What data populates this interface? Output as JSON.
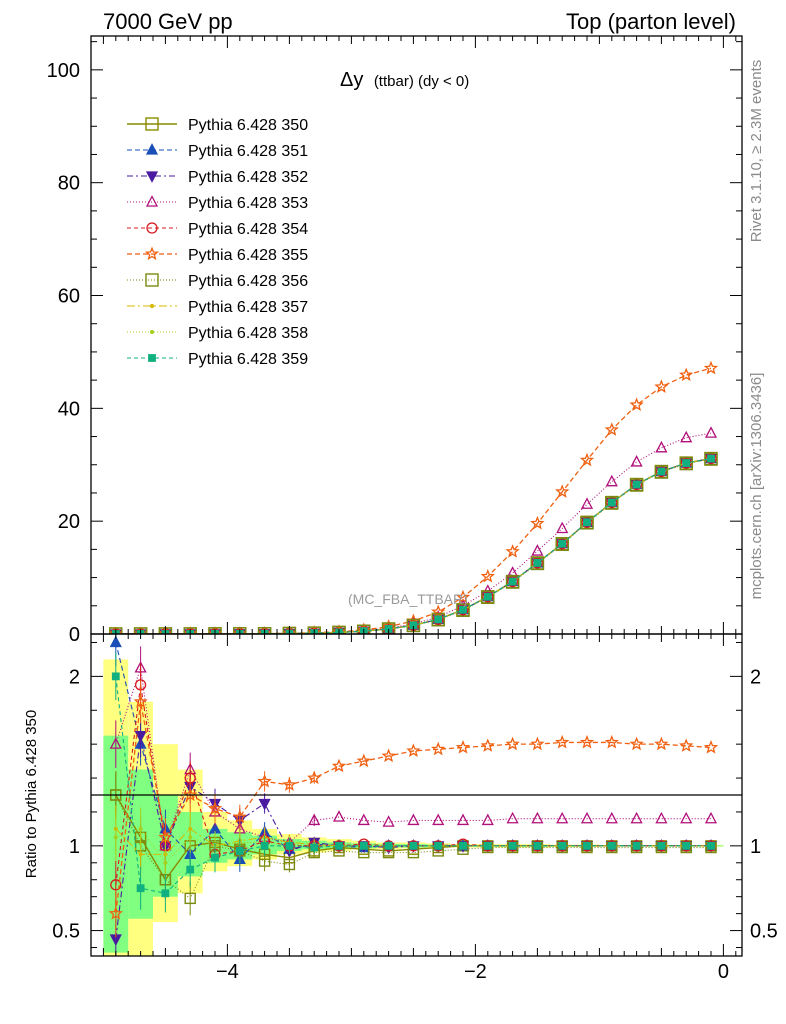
{
  "header": {
    "energy": "7000 GeV pp",
    "process": "Top (parton level)"
  },
  "side": {
    "rivet": "Rivet 3.1.10, ≥ 2.3M events",
    "source": "mcplots.cern.ch [arXiv:1306.3436]"
  },
  "chart_data": {
    "type": "line",
    "title_main": "Δy",
    "title_sub": "(ttbar) (dy < 0)",
    "watermark": "(MC_FBA_TTBAR)",
    "xlim": [
      -5.1,
      0.15
    ],
    "ylim": [
      0,
      106
    ],
    "ratio_ylim": [
      0.35,
      2.25
    ],
    "ratio_ylabel": "Ratio to Pythia 6.428 350",
    "x_ticks": [
      -4,
      -2,
      0
    ],
    "x_tick_labels": [
      "−4",
      "−2",
      "0"
    ],
    "y_ticks": [
      0,
      20,
      40,
      60,
      80,
      100
    ],
    "y_tick_labels": [
      "0",
      "20",
      "40",
      "60",
      "80",
      "100"
    ],
    "ratio_ticks": [
      0.5,
      1,
      2
    ],
    "ratio_tick_labels": [
      "0.5",
      "1",
      "2"
    ],
    "x": [
      -4.9,
      -4.7,
      -4.5,
      -4.3,
      -4.1,
      -3.9,
      -3.7,
      -3.5,
      -3.3,
      -3.1,
      -2.9,
      -2.7,
      -2.5,
      -2.3,
      -2.1,
      -1.9,
      -1.7,
      -1.5,
      -1.3,
      -1.1,
      -0.9,
      -0.7,
      -0.5,
      -0.3,
      -0.1
    ],
    "band_yellow": [
      [
        0.35,
        2.1
      ],
      [
        0.35,
        1.85
      ],
      [
        0.55,
        1.6
      ],
      [
        0.72,
        1.45
      ],
      [
        0.85,
        1.2
      ],
      [
        0.88,
        1.15
      ],
      [
        0.92,
        1.1
      ],
      [
        0.95,
        1.07
      ],
      [
        0.96,
        1.05
      ],
      [
        0.97,
        1.04
      ],
      [
        0.98,
        1.03
      ],
      [
        0.98,
        1.02
      ],
      [
        0.985,
        1.02
      ],
      [
        0.99,
        1.015
      ],
      [
        0.99,
        1.01
      ],
      [
        0.99,
        1.01
      ],
      [
        0.99,
        1.01
      ],
      [
        0.99,
        1.01
      ],
      [
        0.993,
        1.007
      ],
      [
        0.993,
        1.007
      ],
      [
        0.995,
        1.005
      ],
      [
        0.995,
        1.005
      ],
      [
        0.995,
        1.005
      ],
      [
        0.995,
        1.005
      ],
      [
        0.995,
        1.005
      ]
    ],
    "band_green": [
      [
        0.37,
        1.65
      ],
      [
        0.57,
        1.45
      ],
      [
        0.7,
        1.3
      ],
      [
        0.82,
        1.2
      ],
      [
        0.9,
        1.1
      ],
      [
        0.92,
        1.08
      ],
      [
        0.95,
        1.06
      ],
      [
        0.97,
        1.04
      ],
      [
        0.98,
        1.03
      ],
      [
        0.98,
        1.02
      ],
      [
        0.985,
        1.015
      ],
      [
        0.99,
        1.01
      ],
      [
        0.99,
        1.01
      ],
      [
        0.993,
        1.007
      ],
      [
        0.995,
        1.005
      ],
      [
        0.995,
        1.005
      ],
      [
        0.995,
        1.005
      ],
      [
        0.995,
        1.005
      ],
      [
        0.997,
        1.003
      ],
      [
        0.997,
        1.003
      ],
      [
        0.997,
        1.003
      ],
      [
        0.997,
        1.003
      ],
      [
        0.997,
        1.003
      ],
      [
        0.997,
        1.003
      ],
      [
        0.997,
        1.003
      ]
    ],
    "series": [
      {
        "name": "Pythia 6.428 350",
        "color": "#8a8a00",
        "dash": "",
        "marker": "square-open",
        "width": 1.4,
        "values": [
          0.005,
          0.006,
          0.009,
          0.013,
          0.02,
          0.03,
          0.05,
          0.09,
          0.16,
          0.28,
          0.5,
          0.9,
          1.55,
          2.6,
          4.3,
          6.6,
          9.3,
          12.6,
          16.0,
          19.8,
          23.3,
          26.5,
          28.8,
          30.3,
          31.1
        ],
        "ratio": [
          1.3,
          1.05,
          0.8,
          1.0,
          1.02,
          0.98,
          0.95,
          0.93,
          0.97,
          0.99,
          0.98,
          0.97,
          0.98,
          0.99,
          1.0,
          1.0,
          1.0,
          1.0,
          1.0,
          1.0,
          1.0,
          1.0,
          1.0,
          1.0,
          1.0
        ]
      },
      {
        "name": "Pythia 6.428 351",
        "color": "#1a4fb8",
        "dash": "5,3",
        "marker": "triangle-up",
        "width": 1.1,
        "values": [
          0.005,
          0.006,
          0.009,
          0.013,
          0.02,
          0.03,
          0.05,
          0.09,
          0.16,
          0.28,
          0.5,
          0.9,
          1.55,
          2.6,
          4.3,
          6.6,
          9.3,
          12.6,
          16.0,
          19.8,
          23.3,
          26.5,
          28.8,
          30.3,
          31.1
        ],
        "ratio": [
          2.2,
          1.6,
          1.1,
          0.95,
          1.1,
          0.92,
          1.08,
          0.98,
          1.01,
          1.0,
          0.99,
          1.0,
          1.0,
          1.0,
          1.0,
          1.0,
          1.0,
          1.0,
          1.0,
          1.0,
          1.0,
          1.0,
          1.0,
          1.0,
          1.0
        ]
      },
      {
        "name": "Pythia 6.428 352",
        "color": "#4a1aa0",
        "dash": "6,3,2,3",
        "marker": "triangle-down",
        "width": 1.1,
        "values": [
          0.005,
          0.006,
          0.009,
          0.013,
          0.02,
          0.03,
          0.05,
          0.09,
          0.16,
          0.28,
          0.5,
          0.9,
          1.55,
          2.6,
          4.3,
          6.6,
          9.3,
          12.6,
          16.0,
          19.8,
          23.3,
          26.5,
          28.8,
          30.3,
          31.1
        ],
        "ratio": [
          0.45,
          1.65,
          1.0,
          1.35,
          1.25,
          1.15,
          1.25,
          0.97,
          1.02,
          1.0,
          1.0,
          0.99,
          1.0,
          1.0,
          1.0,
          1.0,
          1.0,
          1.0,
          1.0,
          1.0,
          1.0,
          1.0,
          1.0,
          1.0,
          1.0
        ]
      },
      {
        "name": "Pythia 6.428 353",
        "color": "#b0107a",
        "dash": "1,2",
        "marker": "triangle-open",
        "width": 1.1,
        "values": [
          0.006,
          0.007,
          0.01,
          0.016,
          0.024,
          0.036,
          0.06,
          0.11,
          0.19,
          0.33,
          0.58,
          1.05,
          1.8,
          3.0,
          5.0,
          7.6,
          10.8,
          14.7,
          18.7,
          23.0,
          27.0,
          30.5,
          33.0,
          34.8,
          35.6
        ],
        "ratio": [
          1.6,
          2.05,
          1.0,
          1.45,
          1.2,
          1.1,
          1.05,
          1.02,
          1.15,
          1.17,
          1.15,
          1.14,
          1.15,
          1.15,
          1.15,
          1.15,
          1.16,
          1.16,
          1.16,
          1.16,
          1.16,
          1.16,
          1.16,
          1.16,
          1.16
        ]
      },
      {
        "name": "Pythia 6.428 354",
        "color": "#d61820",
        "dash": "4,3",
        "marker": "circle-open",
        "width": 1.1,
        "values": [
          0.005,
          0.006,
          0.009,
          0.013,
          0.02,
          0.03,
          0.05,
          0.09,
          0.16,
          0.28,
          0.5,
          0.9,
          1.55,
          2.6,
          4.3,
          6.6,
          9.3,
          12.6,
          16.0,
          19.8,
          23.3,
          26.5,
          28.8,
          30.3,
          31.1
        ],
        "ratio": [
          0.77,
          1.95,
          1.0,
          1.4,
          0.95,
          0.97,
          1.03,
          1.0,
          1.0,
          1.0,
          1.01,
          1.0,
          1.0,
          1.0,
          1.01,
          1.0,
          1.0,
          1.0,
          1.0,
          1.0,
          1.0,
          1.0,
          1.0,
          1.0,
          1.0
        ]
      },
      {
        "name": "Pythia 6.428 355",
        "color": "#f06010",
        "dash": "5,3",
        "marker": "star-open",
        "width": 1.3,
        "values": [
          0.008,
          0.01,
          0.014,
          0.02,
          0.03,
          0.045,
          0.07,
          0.13,
          0.23,
          0.4,
          0.72,
          1.3,
          2.3,
          3.9,
          6.5,
          10.2,
          14.6,
          19.6,
          25.2,
          30.8,
          36.2,
          40.6,
          43.8,
          45.9,
          47.1
        ],
        "ratio": [
          0.6,
          1.85,
          1.05,
          1.3,
          1.22,
          1.17,
          1.38,
          1.36,
          1.4,
          1.47,
          1.5,
          1.53,
          1.56,
          1.57,
          1.58,
          1.59,
          1.6,
          1.6,
          1.61,
          1.61,
          1.61,
          1.6,
          1.6,
          1.59,
          1.58
        ]
      },
      {
        "name": "Pythia 6.428 356",
        "color": "#7a8a10",
        "dash": "1,2",
        "marker": "square-open",
        "width": 1.1,
        "values": [
          0.004,
          0.005,
          0.008,
          0.012,
          0.019,
          0.028,
          0.046,
          0.085,
          0.15,
          0.27,
          0.48,
          0.86,
          1.5,
          2.52,
          4.2,
          6.5,
          9.2,
          12.5,
          15.9,
          19.7,
          23.2,
          26.4,
          28.7,
          30.2,
          31.0
        ],
        "ratio": [
          1.3,
          1.0,
          0.8,
          0.69,
          1.0,
          0.97,
          0.91,
          0.89,
          0.96,
          0.97,
          0.96,
          0.96,
          0.96,
          0.97,
          0.98,
          0.99,
          0.99,
          0.99,
          0.99,
          0.99,
          0.99,
          0.99,
          0.99,
          0.99,
          0.99
        ]
      },
      {
        "name": "Pythia 6.428 357",
        "color": "#d8b800",
        "dash": "8,3,2,3",
        "marker": "dot",
        "width": 1.0,
        "values": [
          0.005,
          0.006,
          0.009,
          0.013,
          0.02,
          0.03,
          0.05,
          0.09,
          0.16,
          0.28,
          0.5,
          0.9,
          1.55,
          2.6,
          4.3,
          6.6,
          9.3,
          12.6,
          16.0,
          19.8,
          23.3,
          26.5,
          28.8,
          30.3,
          31.1
        ],
        "ratio": [
          1.1,
          0.95,
          0.95,
          1.1,
          1.0,
          1.03,
          1.05,
          1.02,
          1.01,
          1.0,
          1.0,
          1.0,
          1.0,
          1.0,
          1.0,
          1.0,
          1.0,
          1.0,
          1.0,
          1.0,
          1.0,
          1.0,
          1.0,
          1.0,
          1.0
        ]
      },
      {
        "name": "Pythia 6.428 358",
        "color": "#a8d020",
        "dash": "1,2",
        "marker": "dot",
        "width": 1.0,
        "values": [
          0.005,
          0.006,
          0.009,
          0.013,
          0.02,
          0.03,
          0.05,
          0.09,
          0.16,
          0.28,
          0.5,
          0.9,
          1.55,
          2.6,
          4.3,
          6.6,
          9.3,
          12.6,
          16.0,
          19.8,
          23.3,
          26.5,
          28.8,
          30.3,
          31.1
        ],
        "ratio": [
          1.05,
          1.1,
          0.9,
          1.05,
          1.0,
          1.02,
          1.02,
          1.01,
          1.0,
          1.0,
          1.0,
          1.0,
          1.0,
          1.0,
          1.0,
          1.0,
          1.0,
          1.0,
          1.0,
          1.0,
          1.0,
          1.0,
          1.0,
          1.0,
          1.0
        ]
      },
      {
        "name": "Pythia 6.428 359",
        "color": "#10b080",
        "dash": "4,3",
        "marker": "square-filled",
        "width": 1.1,
        "values": [
          0.005,
          0.006,
          0.009,
          0.013,
          0.02,
          0.03,
          0.05,
          0.09,
          0.16,
          0.28,
          0.5,
          0.9,
          1.55,
          2.6,
          4.3,
          6.6,
          9.3,
          12.6,
          16.0,
          19.8,
          23.3,
          26.5,
          28.8,
          30.3,
          31.1
        ],
        "ratio": [
          2.0,
          0.75,
          0.72,
          0.86,
          0.93,
          0.97,
          1.0,
          1.0,
          0.99,
          1.0,
          1.0,
          1.0,
          1.0,
          1.0,
          1.0,
          1.0,
          1.0,
          1.0,
          1.0,
          1.0,
          1.0,
          1.0,
          1.0,
          1.0,
          1.0
        ]
      }
    ]
  }
}
